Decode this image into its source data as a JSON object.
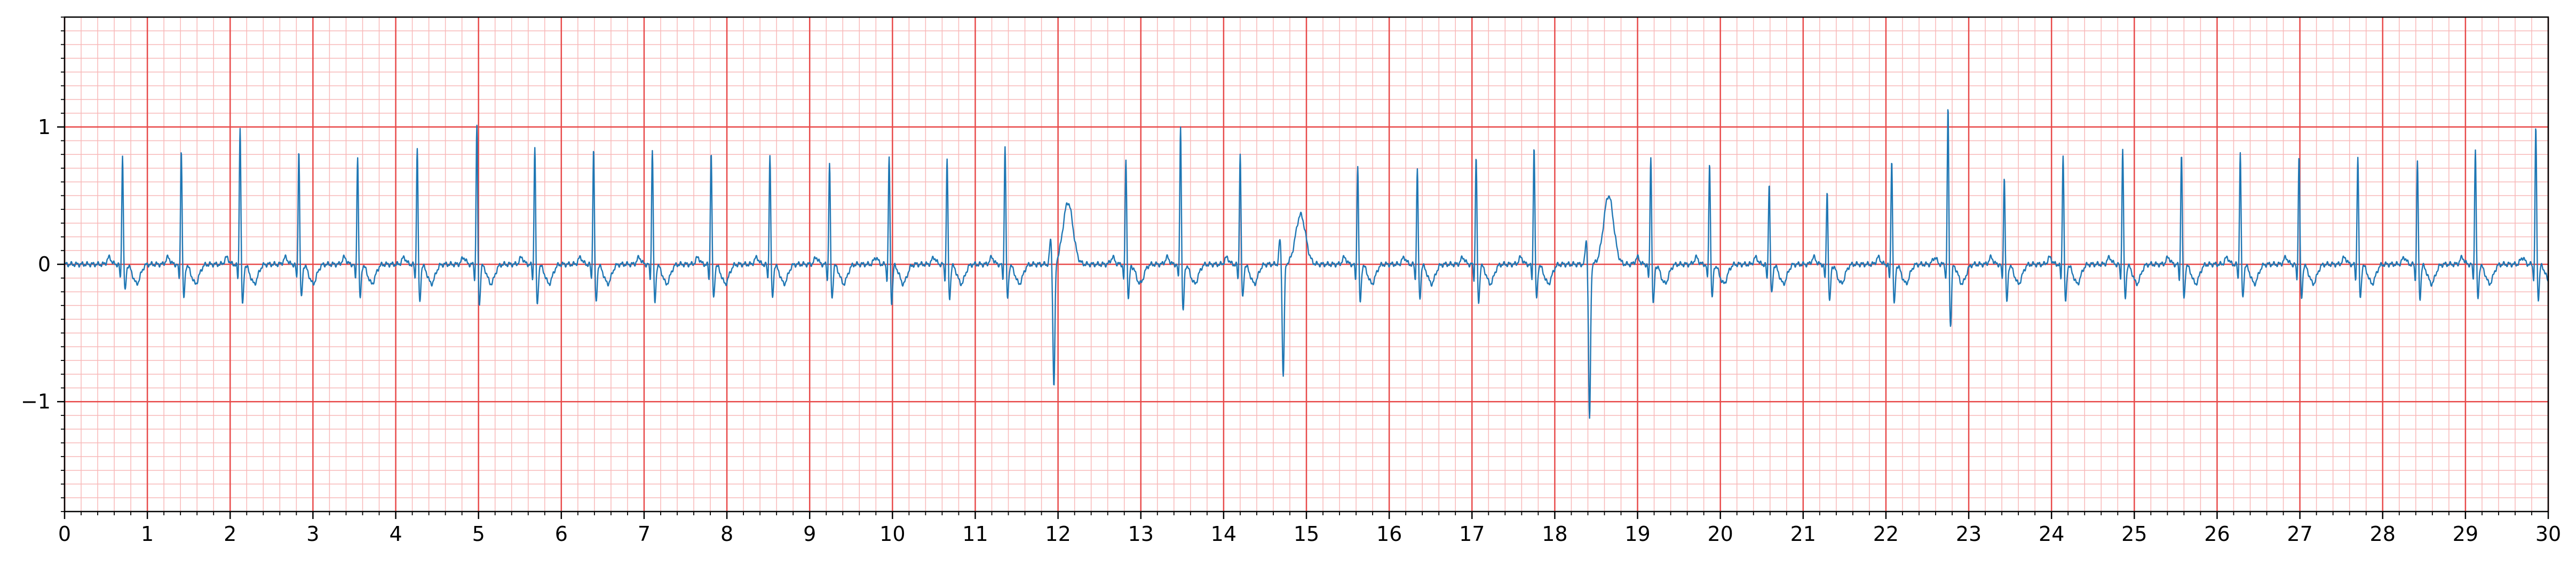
{
  "chart_data": {
    "type": "line",
    "title": "",
    "xlabel": "",
    "ylabel": "",
    "xlim": [
      0,
      30
    ],
    "ylim": [
      -1.8,
      1.8
    ],
    "x_ticks": [
      0,
      1,
      2,
      3,
      4,
      5,
      6,
      7,
      8,
      9,
      10,
      11,
      12,
      13,
      14,
      15,
      16,
      17,
      18,
      19,
      20,
      21,
      22,
      23,
      24,
      25,
      26,
      27,
      28,
      29,
      30
    ],
    "x_tick_labels": [
      "0",
      "1",
      "2",
      "3",
      "4",
      "5",
      "6",
      "7",
      "8",
      "9",
      "10",
      "11",
      "12",
      "13",
      "14",
      "15",
      "16",
      "17",
      "18",
      "19",
      "20",
      "21",
      "22",
      "23",
      "24",
      "25",
      "26",
      "27",
      "28",
      "29",
      "30"
    ],
    "y_ticks": [
      -1,
      0,
      1
    ],
    "y_tick_labels": [
      "−1",
      "0",
      "1"
    ],
    "grid": true,
    "grid_major": {
      "x_step": 1,
      "y_step": 1,
      "color": "#e84a4a"
    },
    "grid_minor": {
      "x_step": 0.2,
      "y_step": 0.1,
      "color": "#f8b8b8"
    },
    "series": [
      {
        "color": "#1f77b4",
        "beats": [
          {
            "t": 0.7,
            "r": 0.8,
            "s": -0.2
          },
          {
            "t": 1.41,
            "r": 0.85,
            "s": -0.25
          },
          {
            "t": 2.12,
            "r": 1.02,
            "s": -0.3
          },
          {
            "t": 2.83,
            "r": 0.84,
            "s": -0.25
          },
          {
            "t": 3.54,
            "r": 0.8,
            "s": -0.25
          },
          {
            "t": 4.26,
            "r": 0.85,
            "s": -0.28
          },
          {
            "t": 4.98,
            "r": 1.02,
            "s": -0.3
          },
          {
            "t": 5.68,
            "r": 0.87,
            "s": -0.3
          },
          {
            "t": 6.39,
            "r": 0.85,
            "s": -0.28
          },
          {
            "t": 7.1,
            "r": 0.85,
            "s": -0.28
          },
          {
            "t": 7.81,
            "r": 0.83,
            "s": -0.25
          },
          {
            "t": 8.52,
            "r": 0.8,
            "s": -0.25
          },
          {
            "t": 9.24,
            "r": 0.74,
            "s": -0.25
          },
          {
            "t": 9.96,
            "r": 0.79,
            "s": -0.28
          },
          {
            "t": 10.66,
            "r": 0.78,
            "s": -0.25
          },
          {
            "t": 11.36,
            "r": 0.88,
            "s": -0.25
          },
          {
            "t": 12.82,
            "r": 0.78,
            "s": -0.25
          },
          {
            "t": 13.48,
            "r": 1.02,
            "s": -0.35
          },
          {
            "t": 14.2,
            "r": 0.82,
            "s": -0.25
          },
          {
            "t": 15.62,
            "r": 0.74,
            "s": -0.28
          },
          {
            "t": 16.34,
            "r": 0.7,
            "s": -0.25
          },
          {
            "t": 17.05,
            "r": 0.8,
            "s": -0.28
          },
          {
            "t": 17.75,
            "r": 0.88,
            "s": -0.25
          },
          {
            "t": 19.16,
            "r": 0.8,
            "s": -0.3
          },
          {
            "t": 19.87,
            "r": 0.75,
            "s": -0.25
          },
          {
            "t": 20.59,
            "r": 0.6,
            "s": -0.22
          },
          {
            "t": 21.29,
            "r": 0.55,
            "s": -0.28
          },
          {
            "t": 22.07,
            "r": 0.78,
            "s": -0.3
          },
          {
            "t": 22.75,
            "r": 1.15,
            "s": -0.45
          },
          {
            "t": 23.43,
            "r": 0.65,
            "s": -0.28
          },
          {
            "t": 24.14,
            "r": 0.82,
            "s": -0.28
          },
          {
            "t": 24.86,
            "r": 0.85,
            "s": -0.25
          },
          {
            "t": 25.57,
            "r": 0.82,
            "s": -0.25
          },
          {
            "t": 26.28,
            "r": 0.82,
            "s": -0.25
          },
          {
            "t": 26.99,
            "r": 0.8,
            "s": -0.25
          },
          {
            "t": 27.7,
            "r": 0.8,
            "s": -0.25
          },
          {
            "t": 28.42,
            "r": 0.76,
            "s": -0.25
          },
          {
            "t": 29.12,
            "r": 0.85,
            "s": -0.25
          },
          {
            "t": 29.85,
            "r": 1.01,
            "s": -0.25
          }
        ],
        "ectopic_beats": [
          {
            "t": 11.95,
            "peak": -0.9,
            "wave_t": 12.12,
            "wave": 0.45
          },
          {
            "t": 14.72,
            "peak": -0.82,
            "wave_t": 14.93,
            "wave": 0.36
          },
          {
            "t": 18.42,
            "peak": -1.13,
            "wave_t": 18.65,
            "wave": 0.5
          }
        ]
      }
    ]
  }
}
